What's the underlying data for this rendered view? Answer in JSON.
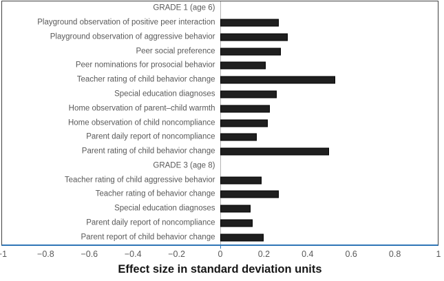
{
  "chart_data": {
    "type": "bar",
    "orientation": "horizontal",
    "xlabel": "Effect size in standard deviation units",
    "xlim": [
      -1,
      1
    ],
    "x_ticks": [
      "−1",
      "−0.8",
      "−0.6",
      "−0.4",
      "−0.2",
      "0",
      "0.2",
      "0.4",
      "0.6",
      "0.8",
      "1"
    ],
    "x_tick_values": [
      -1,
      -0.8,
      -0.6,
      -0.4,
      -0.2,
      0,
      0.2,
      0.4,
      0.6,
      0.8,
      1
    ],
    "grid": false,
    "legend": false,
    "groups": [
      {
        "header": "GRADE 1 (age 6)",
        "items": [
          {
            "label": "Playground observation of positive peer interaction",
            "value": 0.27
          },
          {
            "label": "Playground observation of aggressive behavior",
            "value": 0.31
          },
          {
            "label": "Peer social preference",
            "value": 0.28
          },
          {
            "label": "Peer nominations for prosocial behavior",
            "value": 0.21
          },
          {
            "label": "Teacher rating of child behavior change",
            "value": 0.53
          },
          {
            "label": "Special education diagnoses",
            "value": 0.26
          },
          {
            "label": "Home observation of parent–child warmth",
            "value": 0.23
          },
          {
            "label": "Home observation of child noncompliance",
            "value": 0.22
          },
          {
            "label": "Parent daily report of noncompliance",
            "value": 0.17
          },
          {
            "label": "Parent rating of child behavior change",
            "value": 0.5
          }
        ]
      },
      {
        "header": "GRADE 3 (age 8)",
        "items": [
          {
            "label": "Teacher rating of child aggressive behavior",
            "value": 0.19
          },
          {
            "label": "Teacher rating of behavior change",
            "value": 0.27
          },
          {
            "label": "Special education diagnoses",
            "value": 0.14
          },
          {
            "label": "Parent daily report of noncompliance",
            "value": 0.15
          },
          {
            "label": "Parent report of child behavior change",
            "value": 0.2
          }
        ]
      }
    ],
    "colors": {
      "bar_fill": "#1f1f1f",
      "bar_border": "#000000",
      "chart_border": "#3f3f3f",
      "axis_line": "#2e75b6",
      "zero_line": "#b3b3b3",
      "label_text": "#595959",
      "tick_text": "#595959",
      "title_text": "#161616"
    }
  }
}
